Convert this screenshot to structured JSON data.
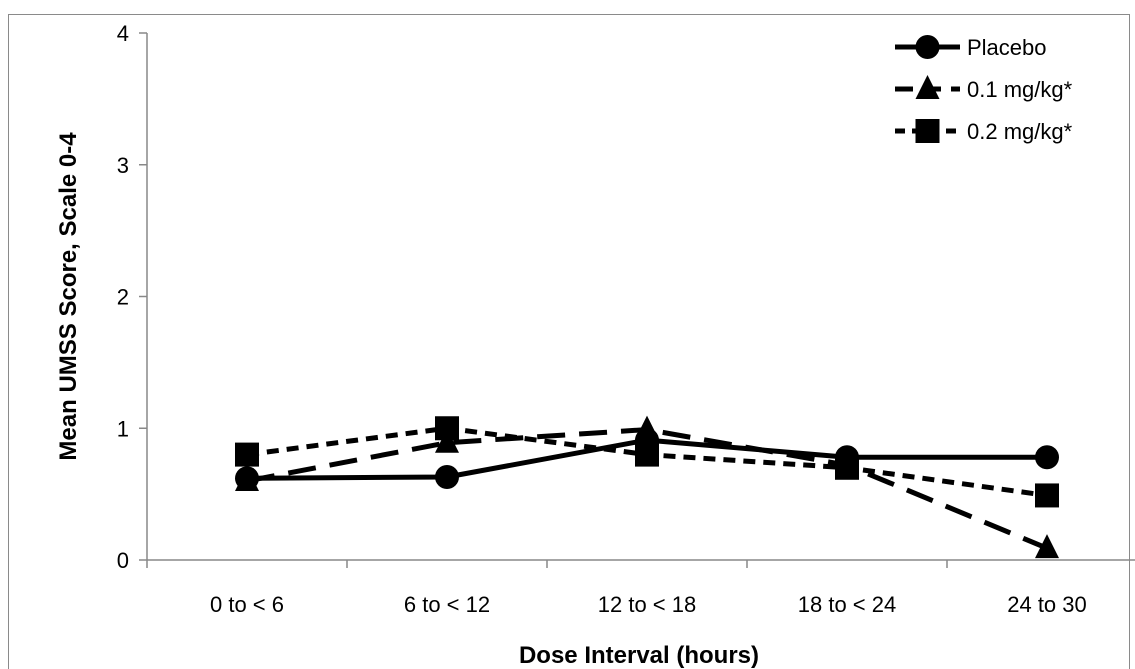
{
  "chart_data": {
    "type": "line",
    "title": "",
    "xlabel": "Dose Interval (hours)",
    "ylabel": "Mean UMSS Score, Scale 0-4",
    "categories": [
      "0 to < 6",
      "6 to < 12",
      "12 to < 18",
      "18 to < 24",
      "24 to 30"
    ],
    "ylim": [
      0,
      4
    ],
    "yticks": [
      0,
      1,
      2,
      3,
      4
    ],
    "grid": false,
    "legend_position": "top-right",
    "series": [
      {
        "name": "Placebo",
        "values": [
          0.62,
          0.63,
          0.91,
          0.78,
          0.78
        ],
        "marker": "circle",
        "line_style": "solid",
        "color": "#000000"
      },
      {
        "name": "0.1 mg/kg*",
        "values": [
          0.6,
          0.89,
          0.99,
          0.72,
          0.09
        ],
        "marker": "triangle",
        "line_style": "long-dash",
        "color": "#000000"
      },
      {
        "name": "0.2 mg/kg*",
        "values": [
          0.8,
          1.0,
          0.8,
          0.7,
          0.49
        ],
        "marker": "square",
        "line_style": "short-dash",
        "color": "#000000"
      }
    ]
  }
}
